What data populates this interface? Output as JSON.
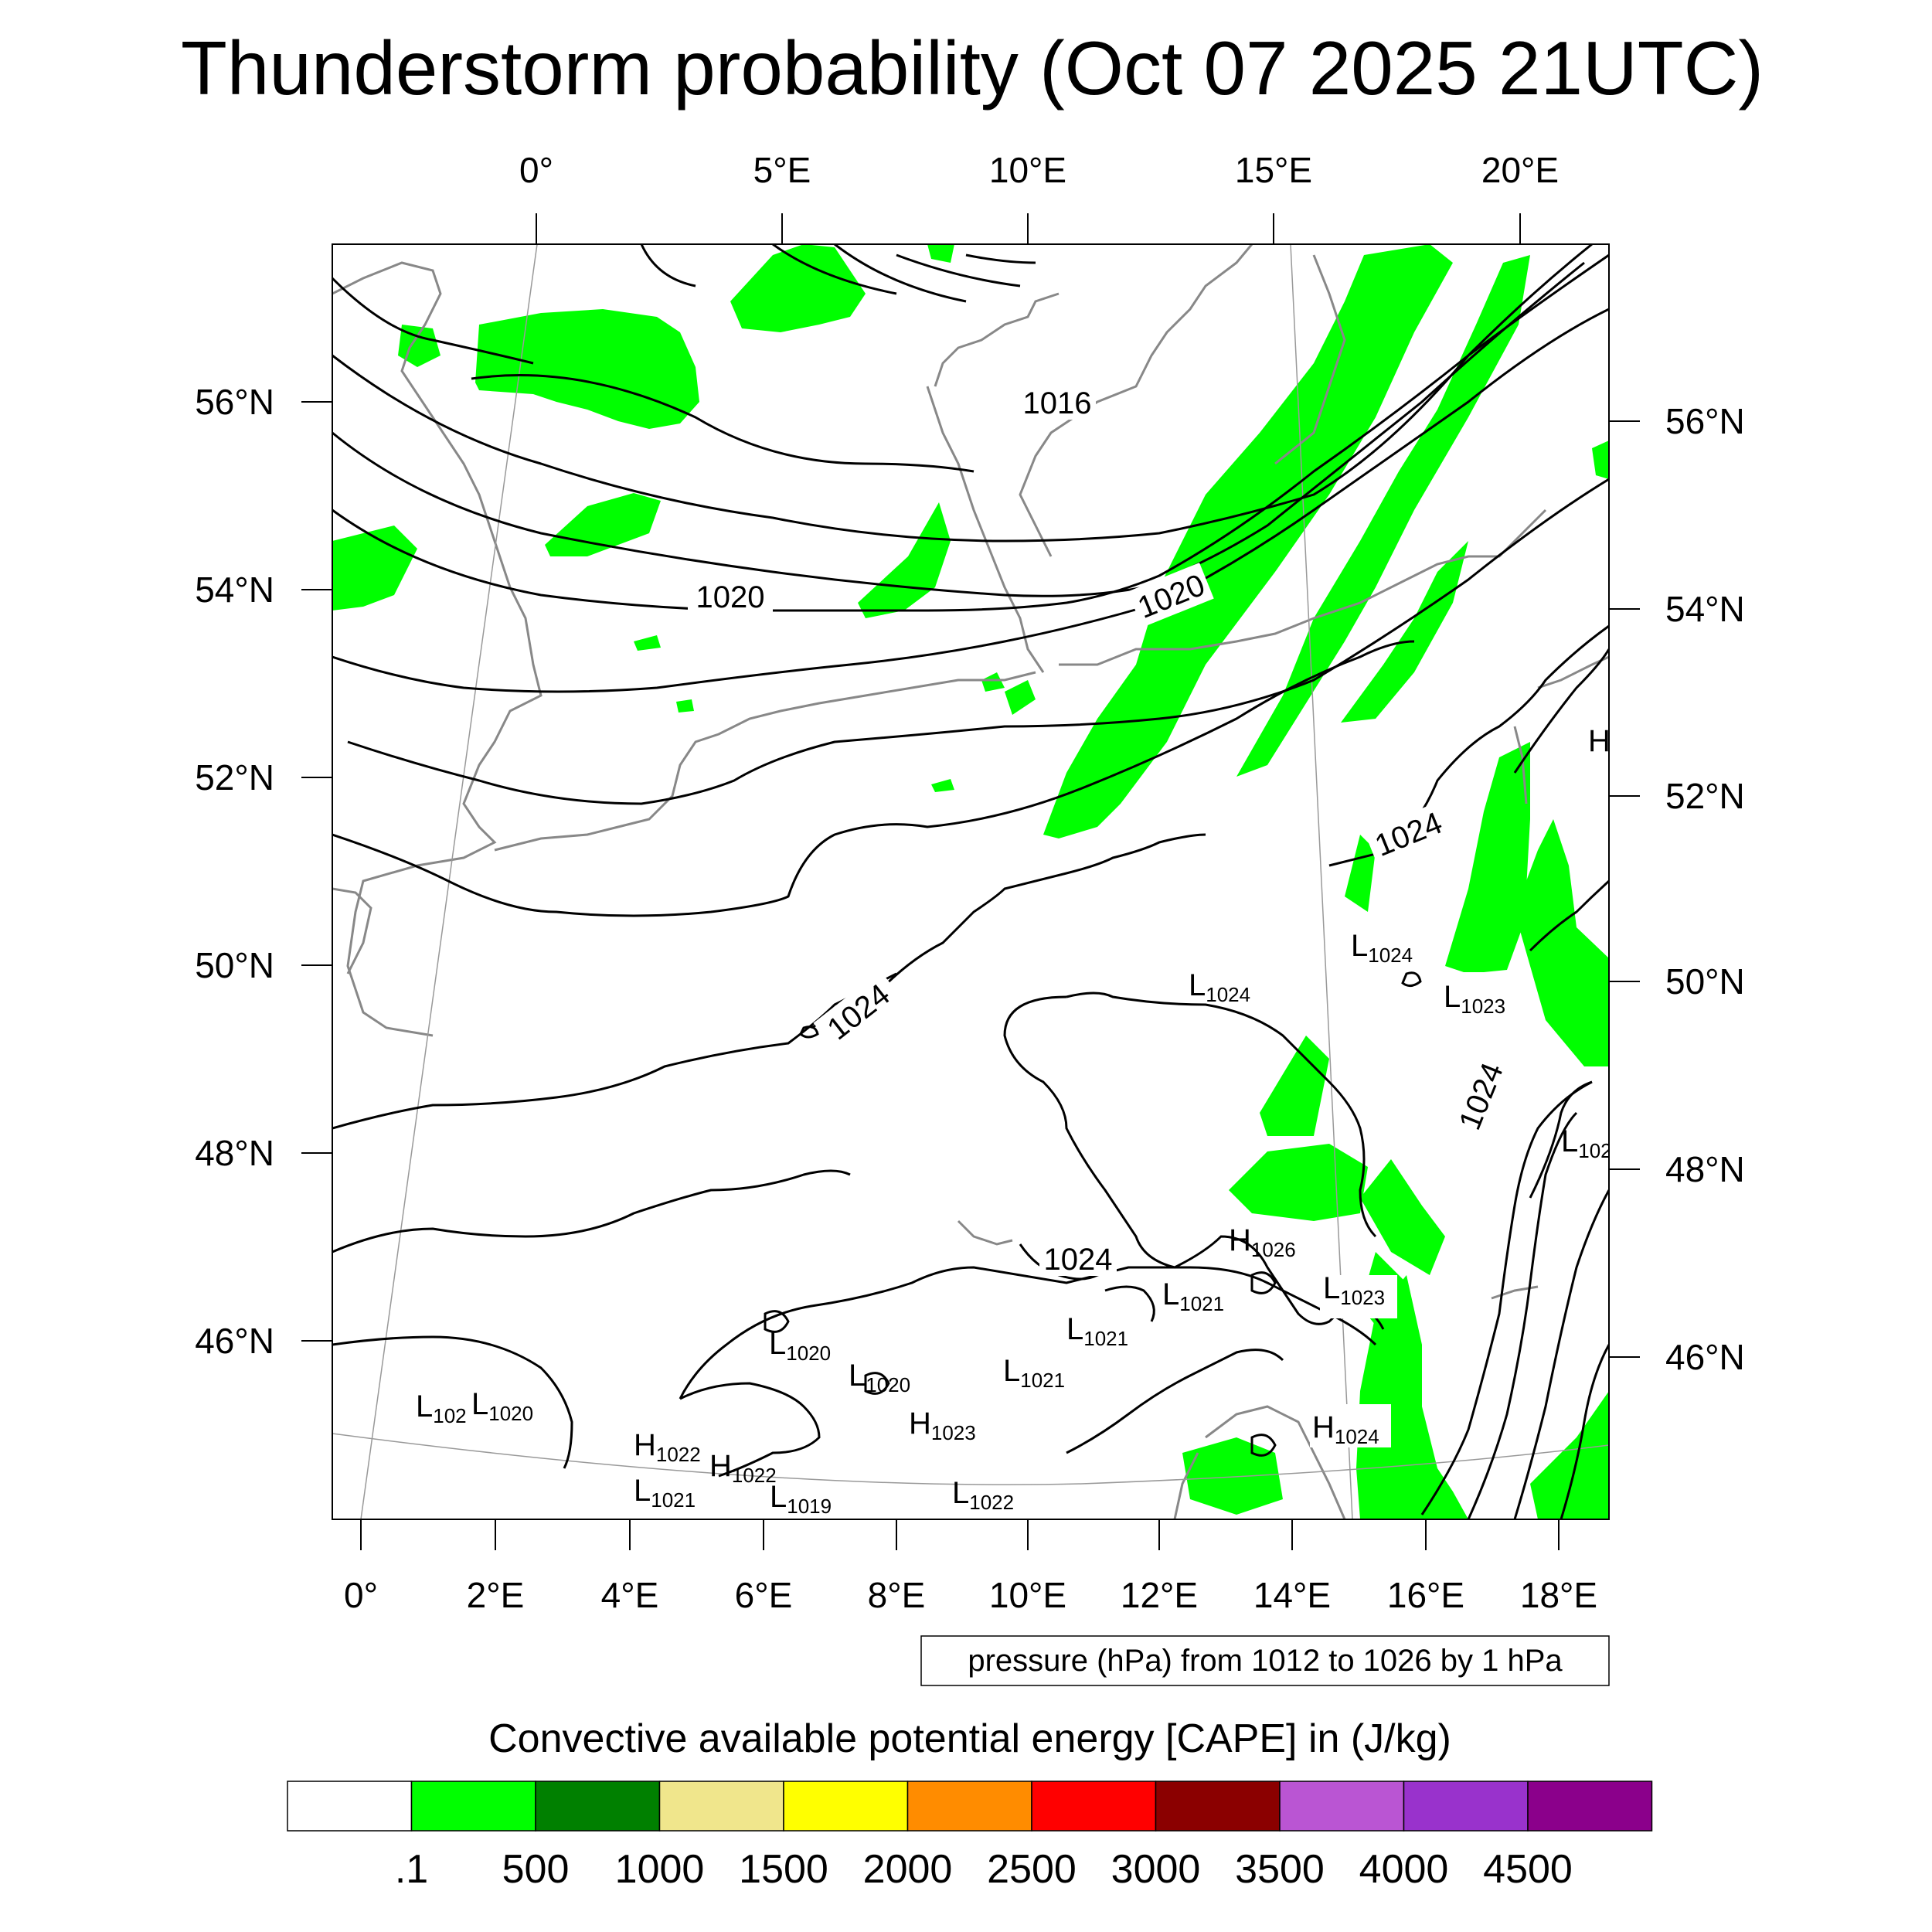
{
  "title": "Thunderstorm probability (Oct 07 2025 21UTC)",
  "colors": {
    "cape_green": "#00ff00",
    "contour": "#000000",
    "coast": "#888888",
    "gridline": "#999999"
  },
  "axes": {
    "top_lon_labels": [
      "0°",
      "5°E",
      "10°E",
      "15°E",
      "20°E"
    ],
    "bottom_lon_labels": [
      "0°",
      "2°E",
      "4°E",
      "6°E",
      "8°E",
      "10°E",
      "12°E",
      "14°E",
      "16°E",
      "18°E"
    ],
    "left_lat_labels": [
      "56°N",
      "54°N",
      "52°N",
      "50°N",
      "48°N",
      "46°N"
    ],
    "right_lat_labels": [
      "56°N",
      "54°N",
      "52°N",
      "50°N",
      "48°N",
      "46°N"
    ]
  },
  "isobar_labels": [
    "1016",
    "1020",
    "1020",
    "1024",
    "1024",
    "1024",
    "1024"
  ],
  "pressure_centers": [
    {
      "type": "L",
      "value": "1024"
    },
    {
      "type": "L",
      "value": "1024"
    },
    {
      "type": "L",
      "value": "1023"
    },
    {
      "type": "H",
      "value": ""
    },
    {
      "type": "L",
      "value": "102"
    },
    {
      "type": "H",
      "value": "1026"
    },
    {
      "type": "L",
      "value": "1021"
    },
    {
      "type": "L",
      "value": "1023"
    },
    {
      "type": "L",
      "value": "1021"
    },
    {
      "type": "L",
      "value": "1021"
    },
    {
      "type": "L",
      "value": "1020"
    },
    {
      "type": "L",
      "value": "1020"
    },
    {
      "type": "H",
      "value": "1023"
    },
    {
      "type": "L",
      "value": "102"
    },
    {
      "type": "L",
      "value": "1020"
    },
    {
      "type": "H",
      "value": "1022"
    },
    {
      "type": "H",
      "value": "1022"
    },
    {
      "type": "L",
      "value": "1021"
    },
    {
      "type": "L",
      "value": "1019"
    },
    {
      "type": "L",
      "value": "1022"
    },
    {
      "type": "H",
      "value": "1024"
    }
  ],
  "contour_info": "pressure (hPa) from 1012 to 1026 by 1 hPa",
  "colorbar": {
    "title": "Convective available potential energy [CAPE] in (J/kg)",
    "colors": [
      "#ffffff",
      "#00ff00",
      "#008000",
      "#f0e68c",
      "#ffff00",
      "#ff8c00",
      "#ff0000",
      "#8b0000",
      "#ba55d3",
      "#9932cc",
      "#8b008b"
    ],
    "labels": [
      ".1",
      "500",
      "1000",
      "1500",
      "2000",
      "2500",
      "3000",
      "3500",
      "4000",
      "4500"
    ]
  }
}
